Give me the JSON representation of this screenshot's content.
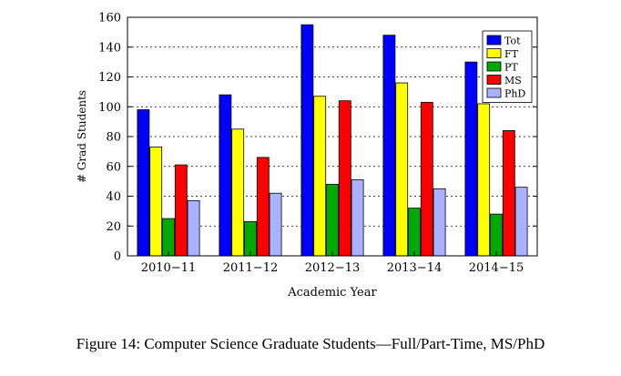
{
  "chart_data": {
    "type": "bar",
    "title": "",
    "xlabel": "Academic Year",
    "ylabel": "# Grad Students",
    "categories": [
      "2010−11",
      "2011−12",
      "2012−13",
      "2013−14",
      "2014−15"
    ],
    "ylim": [
      0,
      160
    ],
    "yticks": [
      0,
      20,
      40,
      60,
      80,
      100,
      120,
      140,
      160
    ],
    "grid": true,
    "legend_position": "top-right",
    "series": [
      {
        "name": "Tot",
        "color": "#0000ff",
        "values": [
          98,
          108,
          155,
          148,
          130
        ]
      },
      {
        "name": "FT",
        "color": "#ffff00",
        "values": [
          73,
          85,
          107,
          116,
          102
        ]
      },
      {
        "name": "PT",
        "color": "#00aa00",
        "values": [
          25,
          23,
          48,
          32,
          28
        ]
      },
      {
        "name": "MS",
        "color": "#ff0000",
        "values": [
          61,
          66,
          104,
          103,
          84
        ]
      },
      {
        "name": "PhD",
        "color": "#aab2ff",
        "values": [
          37,
          42,
          51,
          45,
          46
        ]
      }
    ]
  },
  "caption": "Figure 14: Computer Science Graduate Students—Full/Part-Time, MS/PhD"
}
